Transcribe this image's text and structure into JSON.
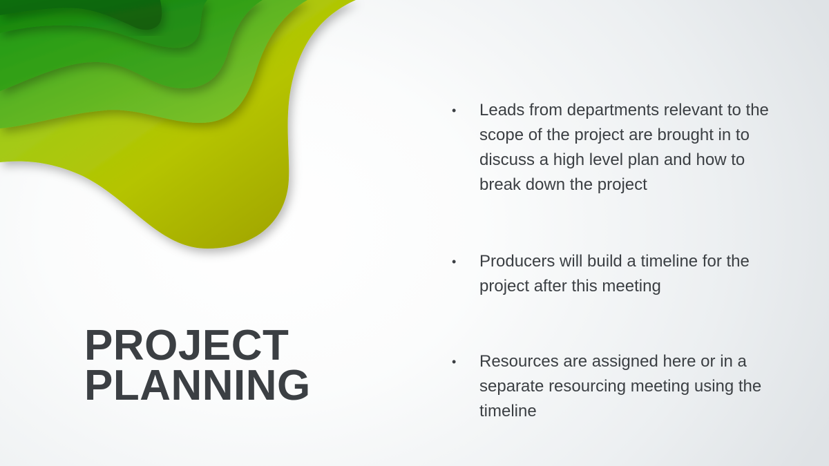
{
  "slide": {
    "title_line1": "PROJECT",
    "title_line2": "PLANNING",
    "bullets": [
      "Leads from departments relevant to the scope of the project are brought in to discuss a high level plan and how to break down the project",
      "Producers will build a timeline for the project after this meeting",
      "Resources are assigned here or in a separate resourcing meeting using the timeline"
    ],
    "bullet_glyph": "•"
  },
  "colors": {
    "title": "#3b3f43",
    "text": "#3b3f43",
    "wave_light": "#b8c400",
    "wave_mid": "#6cc02a",
    "wave_dark": "#1a7a0f"
  }
}
